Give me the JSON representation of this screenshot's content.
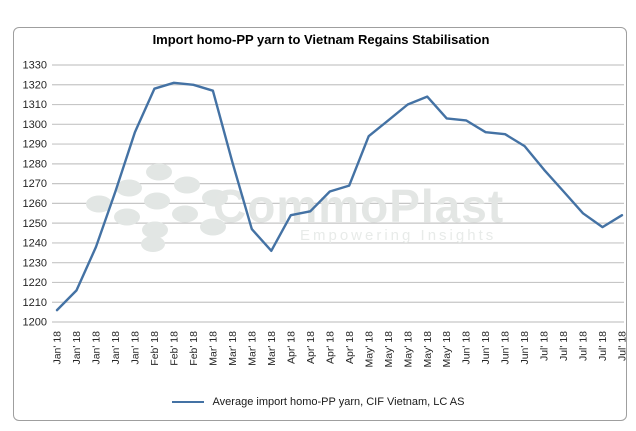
{
  "chart_data": {
    "type": "line",
    "title": "Import homo-PP yarn to Vietnam Regains Stabilisation",
    "categories": [
      "Jan' 18",
      "Jan' 18",
      "Jan' 18",
      "Jan' 18",
      "Jan' 18",
      "Feb' 18",
      "Feb' 18",
      "Feb' 18",
      "Mar' 18",
      "Mar' 18",
      "Mar' 18",
      "Mar' 18",
      "Apr' 18",
      "Apr' 18",
      "Apr' 18",
      "Apr' 18",
      "May' 18",
      "May' 18",
      "May' 18",
      "May' 18",
      "May' 18",
      "Jun' 18",
      "Jun' 18",
      "Jun' 18",
      "Jun' 18",
      "Jul' 18",
      "Jul' 18",
      "Jul' 18",
      "Jul' 18",
      "Jul' 18"
    ],
    "series": [
      {
        "name": "Average import homo-PP yarn, CIF Vietnam, LC AS",
        "values": [
          1206,
          1216,
          1238,
          1266,
          1296,
          1318,
          1321,
          1320,
          1317,
          1281,
          1247,
          1236,
          1254,
          1256,
          1266,
          1269,
          1294,
          1302,
          1310,
          1314,
          1303,
          1302,
          1296,
          1295,
          1289,
          1277,
          1266,
          1255,
          1248,
          1254
        ]
      }
    ],
    "xlabel": "",
    "ylabel": "",
    "ylim": [
      1200,
      1330
    ],
    "ytick_step": 10,
    "grid": true,
    "legend_position": "bottom",
    "line_color": "#4472A4",
    "grid_color": "#c6c6c6"
  },
  "watermark": {
    "name": "CommoPlast",
    "tagline": "Empowering Insights"
  }
}
